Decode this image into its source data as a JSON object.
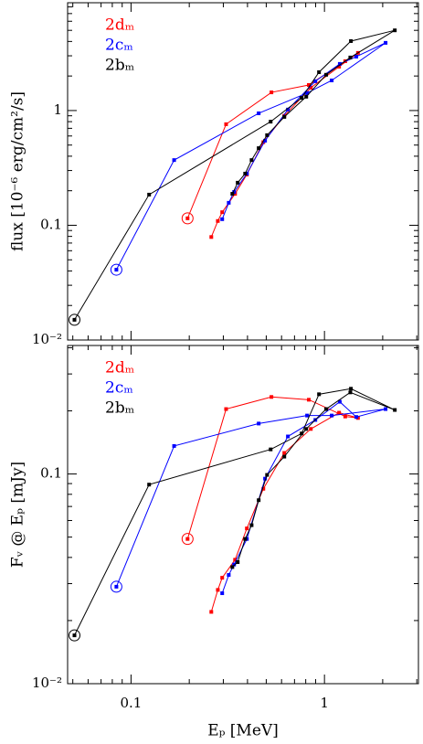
{
  "chart_data": [
    {
      "type": "line",
      "xscale": "log",
      "yscale": "log",
      "y_label": "flux [10⁻⁶ erg/cm²/s]",
      "xlim": [
        0.047,
        3.06
      ],
      "ylim": [
        0.01,
        8.7
      ],
      "xticks": [
        0.1,
        1
      ],
      "yticks": [
        {
          "value": 0.01,
          "label": "10⁻²"
        },
        0.1,
        1
      ],
      "series": [
        {
          "name": "2dₘ",
          "color": "#ff0000",
          "x": [
            0.196,
            0.31,
            0.532,
            0.83,
            1.28,
            1.49,
            1.19,
            0.85,
            0.62,
            0.483,
            0.397,
            0.345,
            0.296,
            0.281,
            0.26
          ],
          "values": [
            0.115,
            0.76,
            1.44,
            1.67,
            2.69,
            3.18,
            2.41,
            1.58,
            0.9,
            0.53,
            0.277,
            0.188,
            0.13,
            0.109,
            0.079
          ]
        },
        {
          "name": "2cₘ",
          "color": "#0000ff",
          "x": [
            0.084,
            0.167,
            0.457,
            0.813,
            1.09,
            2.07,
            1.46,
            1.2,
            0.897,
            0.647,
            0.493,
            0.397,
            0.341,
            0.32,
            0.296
          ],
          "values": [
            0.041,
            0.37,
            0.946,
            1.42,
            1.83,
            3.89,
            2.95,
            2.55,
            1.8,
            1.02,
            0.546,
            0.282,
            0.195,
            0.157,
            0.113
          ]
        },
        {
          "name": "2bₘ",
          "color": "#000000",
          "x": [
            0.051,
            0.124,
            0.527,
            0.762,
            0.937,
            1.37,
            2.31,
            1.36,
            1.02,
            0.805,
            0.62,
            0.505,
            0.457,
            0.42,
            0.389,
            0.356,
            0.334
          ],
          "values": [
            0.015,
            0.185,
            0.8,
            1.29,
            2.16,
            4.03,
            5.0,
            2.9,
            2.05,
            1.32,
            0.88,
            0.61,
            0.47,
            0.37,
            0.282,
            0.235,
            0.188
          ]
        }
      ]
    },
    {
      "type": "line",
      "xscale": "log",
      "yscale": "log",
      "x_label": "Eₚ [MeV]",
      "y_label": "Fᵥ @ Eₚ [mJy]",
      "xlim": [
        0.047,
        3.06
      ],
      "ylim": [
        0.01,
        0.41
      ],
      "xticks": [
        0.1,
        1
      ],
      "yticks": [
        {
          "value": 0.01,
          "label": "10⁻²"
        },
        0.1
      ],
      "series": [
        {
          "name": "2dₘ",
          "color": "#ff0000",
          "x": [
            0.196,
            0.31,
            0.532,
            0.83,
            1.28,
            1.49,
            1.19,
            0.85,
            0.62,
            0.483,
            0.397,
            0.345,
            0.296,
            0.281,
            0.26
          ],
          "values": [
            0.049,
            0.204,
            0.233,
            0.226,
            0.188,
            0.185,
            0.196,
            0.164,
            0.126,
            0.085,
            0.055,
            0.039,
            0.032,
            0.028,
            0.022
          ]
        },
        {
          "name": "2cₘ",
          "color": "#0000ff",
          "x": [
            0.084,
            0.167,
            0.457,
            0.813,
            1.09,
            2.07,
            1.46,
            1.2,
            0.897,
            0.647,
            0.493,
            0.397,
            0.341,
            0.32,
            0.296
          ],
          "values": [
            0.029,
            0.136,
            0.174,
            0.19,
            0.19,
            0.204,
            0.187,
            0.221,
            0.181,
            0.151,
            0.095,
            0.049,
            0.037,
            0.033,
            0.027
          ]
        },
        {
          "name": "2bₘ",
          "color": "#000000",
          "x": [
            0.051,
            0.124,
            0.527,
            0.762,
            0.937,
            1.37,
            2.31,
            1.36,
            1.02,
            0.805,
            0.62,
            0.505,
            0.457,
            0.42,
            0.389,
            0.356,
            0.334
          ],
          "values": [
            0.017,
            0.089,
            0.131,
            0.156,
            0.24,
            0.255,
            0.202,
            0.245,
            0.204,
            0.164,
            0.121,
            0.099,
            0.075,
            0.057,
            0.049,
            0.038,
            0.036
          ]
        }
      ]
    }
  ]
}
